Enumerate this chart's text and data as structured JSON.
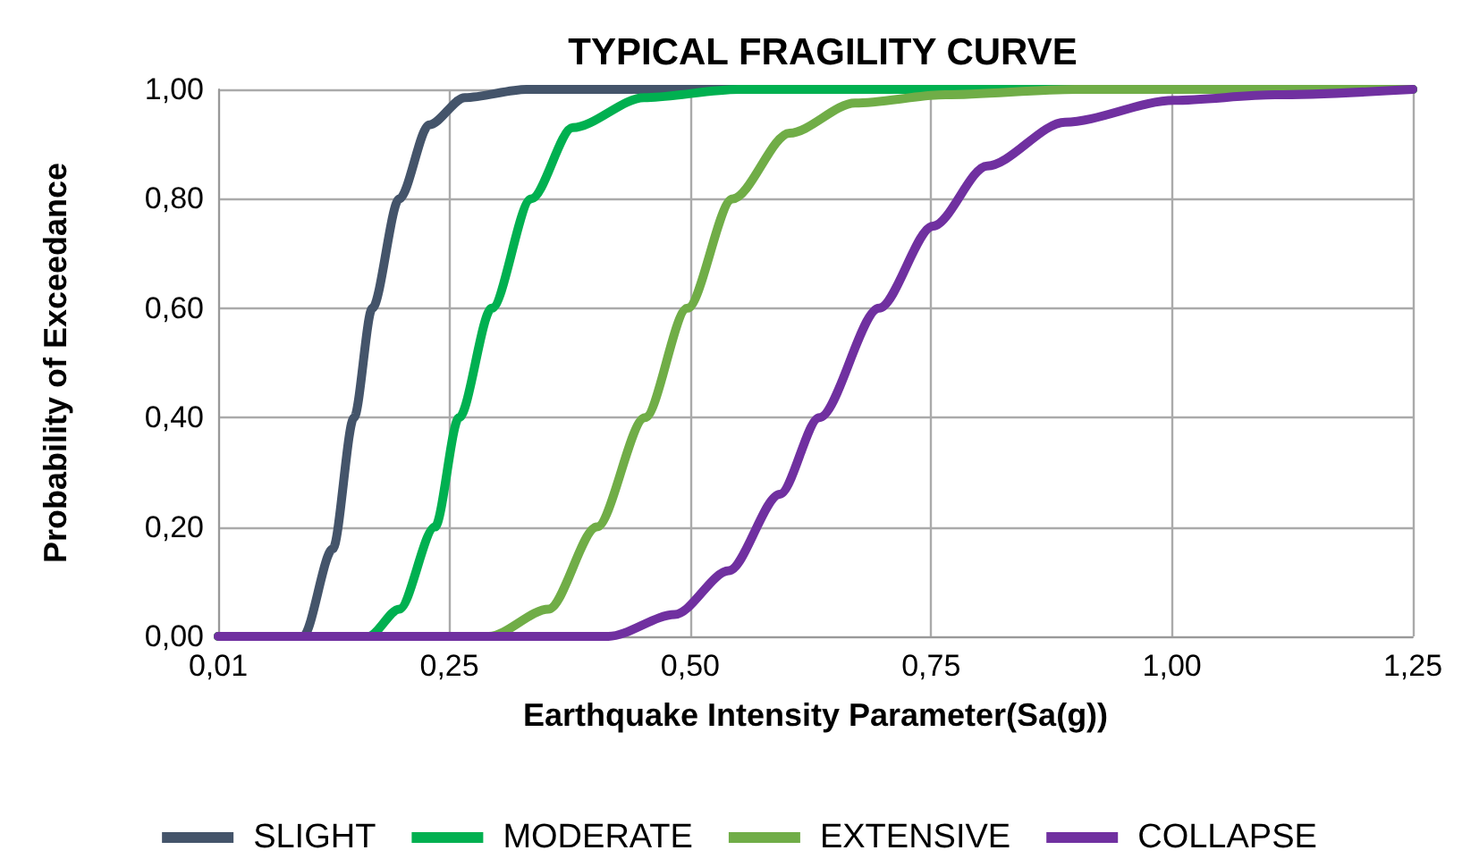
{
  "chart_data": {
    "type": "line",
    "title": "TYPICAL FRAGILITY CURVE",
    "xlabel": "Earthquake Intensity Parameter(Sa(g))",
    "ylabel": "Probability of Exceedance",
    "xlim": [
      0.01,
      1.25
    ],
    "xticks": [
      {
        "value": 0.01,
        "label": "0,01"
      },
      {
        "value": 0.25,
        "label": "0,25"
      },
      {
        "value": 0.5,
        "label": "0,50"
      },
      {
        "value": 0.75,
        "label": "0,75"
      },
      {
        "value": 1.0,
        "label": "1,00"
      },
      {
        "value": 1.25,
        "label": "1,25"
      }
    ],
    "ylim": [
      0,
      1
    ],
    "yticks": [
      {
        "value": 0,
        "label": "0,00"
      },
      {
        "value": 0.2,
        "label": "0,20"
      },
      {
        "value": 0.4,
        "label": "0,40"
      },
      {
        "value": 0.6,
        "label": "0,60"
      },
      {
        "value": 0.8,
        "label": "0,80"
      },
      {
        "value": 1,
        "label": "1,00"
      }
    ],
    "grid": true,
    "legend": "bottom",
    "marker": "none",
    "line_style": "solid",
    "series": [
      {
        "name": "SLIGHT",
        "color": "#44546a",
        "x": [
          0.01,
          0.098,
          0.129,
          0.151,
          0.17,
          0.198,
          0.229,
          0.266,
          0.33,
          0.6,
          1.25
        ],
        "values": [
          0,
          0,
          0.16,
          0.4,
          0.6,
          0.8,
          0.935,
          0.985,
          1,
          1,
          1
        ]
      },
      {
        "name": "MODERATE",
        "color": "#00b050",
        "x": [
          0.01,
          0.166,
          0.198,
          0.235,
          0.26,
          0.294,
          0.335,
          0.378,
          0.452,
          0.55,
          1.25
        ],
        "values": [
          0,
          0,
          0.05,
          0.2,
          0.4,
          0.6,
          0.8,
          0.93,
          0.985,
          1,
          1
        ]
      },
      {
        "name": "EXTENSIVE",
        "color": "#70ad47",
        "x": [
          0.01,
          0.291,
          0.353,
          0.403,
          0.453,
          0.497,
          0.544,
          0.603,
          0.671,
          0.765,
          0.9,
          1.25
        ],
        "values": [
          0,
          0,
          0.05,
          0.2,
          0.4,
          0.6,
          0.8,
          0.92,
          0.975,
          0.99,
          1,
          1
        ]
      },
      {
        "name": "COLLAPSE",
        "color": "#7030a0",
        "x": [
          0.01,
          0.415,
          0.484,
          0.54,
          0.593,
          0.634,
          0.696,
          0.752,
          0.808,
          0.889,
          1.002,
          1.107,
          1.25
        ],
        "values": [
          0,
          0,
          0.04,
          0.12,
          0.26,
          0.4,
          0.6,
          0.75,
          0.86,
          0.94,
          0.98,
          0.99,
          1
        ]
      }
    ]
  }
}
